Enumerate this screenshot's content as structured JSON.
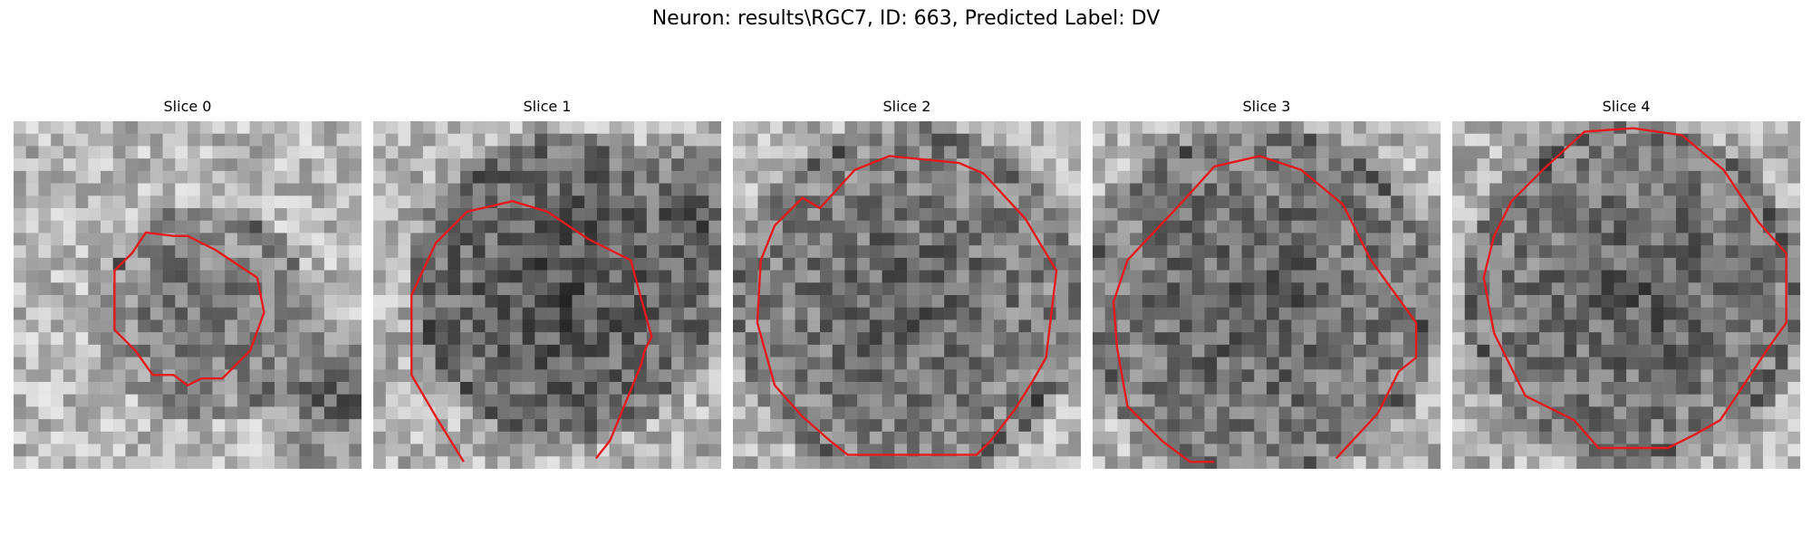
{
  "figure": {
    "title": "Neuron: results\\RGC7, ID: 663, Predicted Label: DV"
  },
  "contour_color": "#e41a1c",
  "slices": [
    {
      "label": "Slice 0"
    },
    {
      "label": "Slice 1"
    },
    {
      "label": "Slice 2"
    },
    {
      "label": "Slice 3"
    },
    {
      "label": "Slice 4"
    }
  ]
}
